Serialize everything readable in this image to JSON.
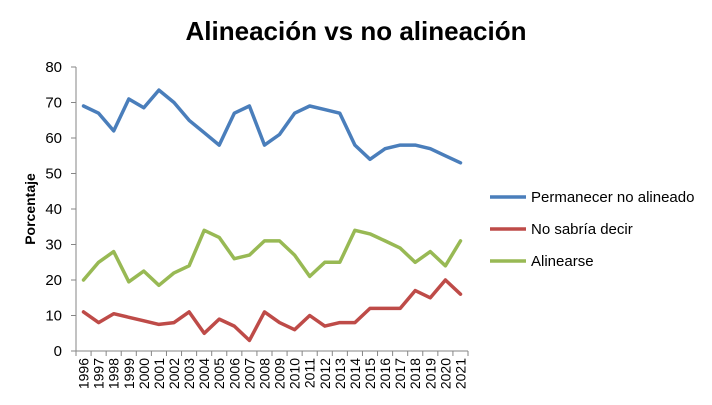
{
  "chart_data": {
    "type": "line",
    "title": "Alineación vs no alineación",
    "ylabel": "Porcentaje",
    "xlabel": "",
    "ylim": [
      0,
      80
    ],
    "yticks": [
      0,
      10,
      20,
      30,
      40,
      50,
      60,
      70,
      80
    ],
    "grid": false,
    "legend_position": "right",
    "x": [
      "1996",
      "1997",
      "1998",
      "1999",
      "2000",
      "2001",
      "2002",
      "2003",
      "2004",
      "2005",
      "2006",
      "2007",
      "2008",
      "2009",
      "2010",
      "2011",
      "2012",
      "2013",
      "2014",
      "2015",
      "2016",
      "2017",
      "2018",
      "2019",
      "2020",
      "2021"
    ],
    "series": [
      {
        "name": "Permanecer no alineado",
        "color": "#4a7ebb",
        "values": [
          69,
          67,
          62,
          71,
          68.5,
          73.5,
          70,
          65,
          61.5,
          58,
          67,
          69,
          58,
          61,
          67,
          69,
          68,
          67,
          58,
          54,
          57,
          58,
          58,
          57,
          55,
          53
        ]
      },
      {
        "name": "No sabría decir",
        "color": "#be4b48",
        "values": [
          11,
          8,
          10.5,
          9.5,
          8.5,
          7.5,
          8,
          11,
          5,
          9,
          7,
          3,
          11,
          8,
          6,
          10,
          7,
          8,
          8,
          12,
          12,
          12,
          17,
          15,
          20,
          16
        ]
      },
      {
        "name": "Alinearse",
        "color": "#98b954",
        "values": [
          20,
          25,
          28,
          19.5,
          22.5,
          18.5,
          22,
          24,
          34,
          32,
          26,
          27,
          31,
          31,
          27,
          21,
          25,
          25,
          34,
          33,
          31,
          29,
          25,
          28,
          24,
          31
        ]
      }
    ]
  }
}
